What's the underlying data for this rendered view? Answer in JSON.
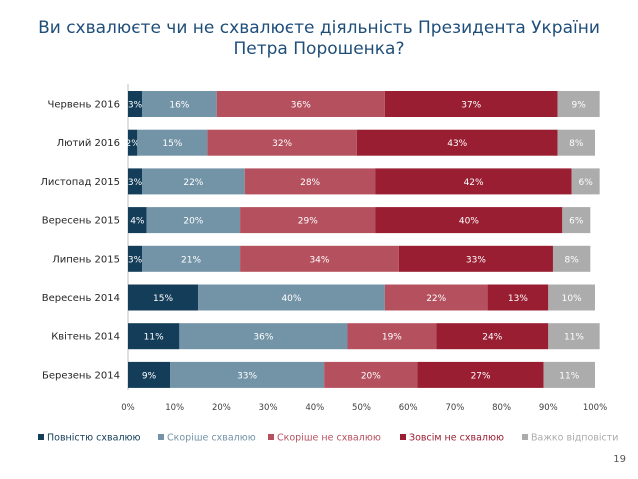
{
  "title_line1": "Ви схвалюєте чи не схвалюєте діяльність Президента України",
  "title_line2": "Петра Порошенка?",
  "page_number": "19",
  "chart_data": {
    "type": "bar",
    "orientation": "horizontal-stacked-100",
    "categories": [
      "Червень 2016",
      "Лютий 2016",
      "Листопад 2015",
      "Вересень 2015",
      "Липень 2015",
      "Вересень 2014",
      "Квітень 2014",
      "Березень 2014"
    ],
    "series": [
      {
        "name": "Повністю схвалюю",
        "color": "#143d59",
        "values": [
          3,
          2,
          3,
          4,
          3,
          15,
          11,
          9
        ]
      },
      {
        "name": "Скоріше схвалюю",
        "color": "#7393a7",
        "values": [
          16,
          15,
          22,
          20,
          21,
          40,
          36,
          33
        ]
      },
      {
        "name": "Скоріше не схвалюю",
        "color": "#b5515f",
        "values": [
          36,
          32,
          28,
          29,
          34,
          22,
          19,
          20
        ]
      },
      {
        "name": "Зовсім не схвалюю",
        "color": "#991e32",
        "values": [
          37,
          43,
          42,
          40,
          33,
          13,
          24,
          27
        ]
      },
      {
        "name": "Важко відповісти",
        "color": "#acacac",
        "values": [
          9,
          8,
          6,
          6,
          8,
          10,
          11,
          11
        ]
      }
    ],
    "labels": [
      [
        "3%",
        "16%",
        "36%",
        "37%",
        "9%"
      ],
      [
        "2%",
        "15%",
        "32%",
        "43%",
        "8%"
      ],
      [
        "3%",
        "22%",
        "28%",
        "42%",
        "6%"
      ],
      [
        "4%",
        "20%",
        "29%",
        "40%",
        "6%"
      ],
      [
        "3%",
        "21%",
        "34%",
        "33%",
        "8%"
      ],
      [
        "15%",
        "40%",
        "22%",
        "13%",
        "10%"
      ],
      [
        "11%",
        "36%",
        "19%",
        "24%",
        "11%"
      ],
      [
        "9%",
        "33%",
        "20%",
        "27%",
        "11%"
      ]
    ],
    "xticks": [
      "0%",
      "10%",
      "20%",
      "30%",
      "40%",
      "50%",
      "60%",
      "70%",
      "80%",
      "90%",
      "100%"
    ],
    "xlim": [
      0,
      100
    ],
    "legend_position": "bottom"
  }
}
